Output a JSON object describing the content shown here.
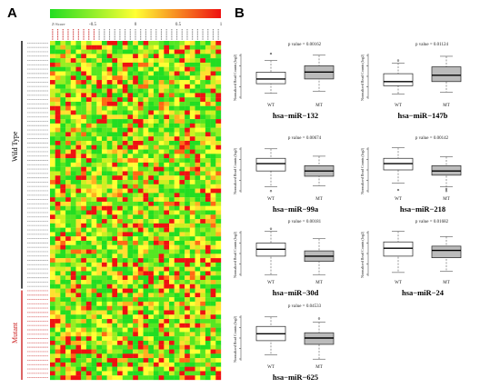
{
  "panel_a": {
    "letter": "A",
    "colorkey": {
      "label": "Z-Score",
      "ticks": [
        "-1",
        "-0.5",
        "0",
        "0.5",
        "1"
      ],
      "low_color": "#22dd22",
      "mid_color": "#ffff33",
      "high_color": "#ee1111"
    },
    "groups": [
      {
        "name": "Wild Type",
        "color": "#000000"
      },
      {
        "name": "Mutant",
        "color": "#cc2222"
      }
    ]
  },
  "panel_b": {
    "letter": "B",
    "group_labels": [
      "WT",
      "MT"
    ],
    "ylabel": "Normalized Read Counts (log2)",
    "wt_color": "#ffffff",
    "mt_color": "#bbbbbb"
  },
  "chart_data": [
    {
      "type": "box",
      "title": "hsa−miR−132",
      "p_label": "p value = 0.00162",
      "groups": [
        "WT",
        "MT"
      ],
      "wt": {
        "min": 0.18,
        "q1": 0.36,
        "median": 0.45,
        "q3": 0.58,
        "max": 0.8,
        "outliers": [
          0.93
        ]
      },
      "mt": {
        "min": 0.22,
        "q1": 0.45,
        "median": 0.58,
        "q3": 0.7,
        "max": 0.9,
        "outliers": []
      }
    },
    {
      "type": "box",
      "title": "hsa−miR−147b",
      "p_label": "p value = 0.01124",
      "groups": [
        "WT",
        "MT"
      ],
      "wt": {
        "min": 0.16,
        "q1": 0.32,
        "median": 0.4,
        "q3": 0.55,
        "max": 0.75,
        "outliers": [
          0.8
        ]
      },
      "mt": {
        "min": 0.2,
        "q1": 0.4,
        "median": 0.52,
        "q3": 0.68,
        "max": 0.88,
        "outliers": []
      }
    },
    {
      "type": "box",
      "title": "hsa−miR−99a",
      "p_label": "p value = 0.00674",
      "groups": [
        "WT",
        "MT"
      ],
      "wt": {
        "min": 0.18,
        "q1": 0.48,
        "median": 0.62,
        "q3": 0.72,
        "max": 0.9,
        "outliers": [
          0.1
        ]
      },
      "mt": {
        "min": 0.2,
        "q1": 0.38,
        "median": 0.48,
        "q3": 0.58,
        "max": 0.76,
        "outliers": []
      }
    },
    {
      "type": "box",
      "title": "hsa−miR−218",
      "p_label": "p value = 0.00142",
      "groups": [
        "WT",
        "MT"
      ],
      "wt": {
        "min": 0.25,
        "q1": 0.5,
        "median": 0.62,
        "q3": 0.72,
        "max": 0.92,
        "outliers": [
          0.12
        ]
      },
      "mt": {
        "min": 0.18,
        "q1": 0.4,
        "median": 0.48,
        "q3": 0.58,
        "max": 0.75,
        "outliers": [
          0.1,
          0.14
        ]
      }
    },
    {
      "type": "box",
      "title": "hsa−miR−30d",
      "p_label": "p value = 0.00181",
      "groups": [
        "WT",
        "MT"
      ],
      "wt": {
        "min": 0.1,
        "q1": 0.45,
        "median": 0.58,
        "q3": 0.7,
        "max": 0.92,
        "outliers": [
          0.97
        ]
      },
      "mt": {
        "min": 0.1,
        "q1": 0.35,
        "median": 0.45,
        "q3": 0.55,
        "max": 0.78,
        "outliers": []
      }
    },
    {
      "type": "box",
      "title": "hsa−miR−24",
      "p_label": "p value = 0.01682",
      "groups": [
        "WT",
        "MT"
      ],
      "wt": {
        "min": 0.14,
        "q1": 0.45,
        "median": 0.6,
        "q3": 0.72,
        "max": 0.92,
        "outliers": []
      },
      "mt": {
        "min": 0.16,
        "q1": 0.42,
        "median": 0.56,
        "q3": 0.64,
        "max": 0.82,
        "outliers": []
      }
    },
    {
      "type": "box",
      "title": "hsa−miR−625",
      "p_label": "p value = 0.04533",
      "groups": [
        "WT",
        "MT"
      ],
      "wt": {
        "min": 0.18,
        "q1": 0.45,
        "median": 0.58,
        "q3": 0.72,
        "max": 0.9,
        "outliers": []
      },
      "mt": {
        "min": 0.1,
        "q1": 0.38,
        "median": 0.5,
        "q3": 0.6,
        "max": 0.8,
        "outliers": [
          0.87
        ]
      }
    }
  ]
}
